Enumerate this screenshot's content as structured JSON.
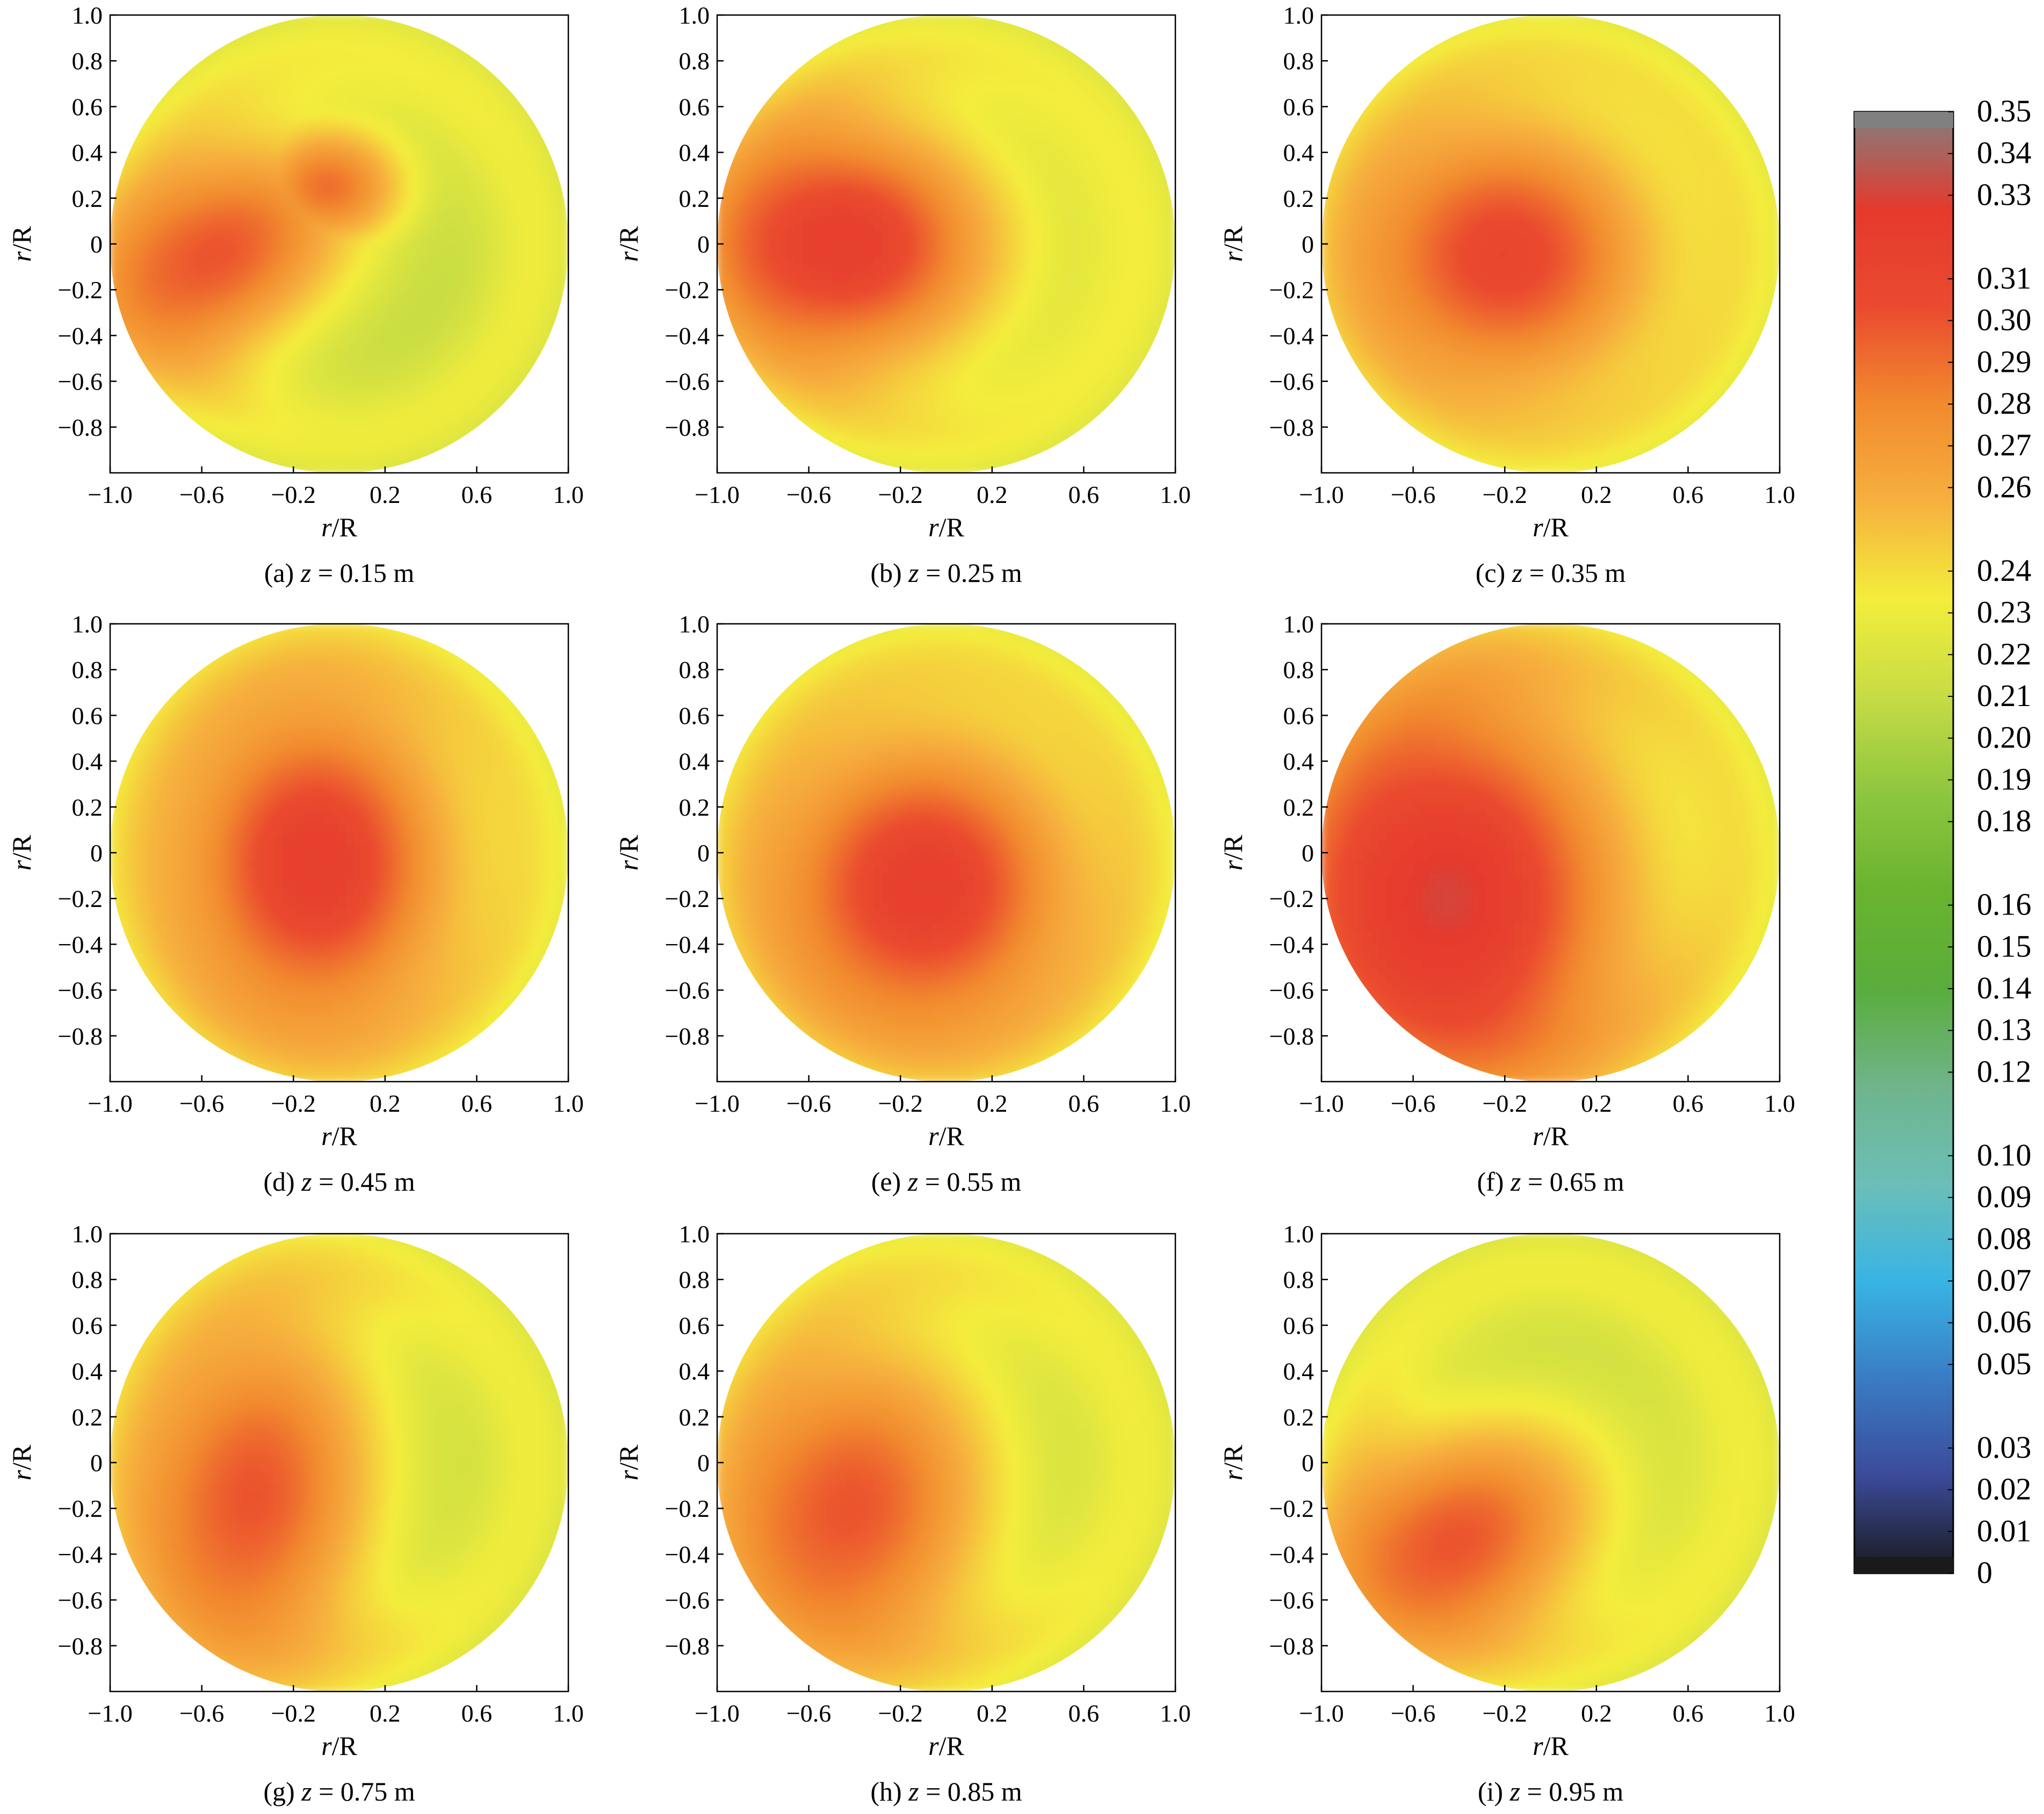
{
  "colors": {
    "colormap": [
      "#1a1a1a",
      "#3b4a9a",
      "#3a7cc4",
      "#39b4e4",
      "#6cbfb7",
      "#6fb48b",
      "#5aad3c",
      "#69b32f",
      "#8ec63f",
      "#c6dc44",
      "#f4ed3c",
      "#f6b03e",
      "#f28a2e",
      "#ea4a2f",
      "#e53a2d",
      "#808080"
    ],
    "axis": "#000000",
    "background": "#ffffff"
  },
  "chart_data": {
    "type": "heatmap",
    "panel_count": 9,
    "panel_layout": "3x3 grid",
    "colorbar_location": "right",
    "axis_tick_labels": [
      "−1.0",
      "−0.6",
      "−0.2",
      "0.2",
      "0.6",
      "1.0"
    ],
    "y_tick_labels": [
      "1.0",
      "0.8",
      "0.6",
      "0.4",
      "0.2",
      "0",
      "−0.2",
      "−0.4",
      "−0.6",
      "−0.8"
    ],
    "xlim": [
      -1.0,
      1.0
    ],
    "ylim": [
      -1.0,
      1.0
    ],
    "panels": [
      {
        "label_prefix": "(a) ",
        "var": "z",
        "eq": " = 0.15 m",
        "xlabel_v": "r",
        "xlabel_s": "/R",
        "ylabel_v": "r",
        "ylabel_s": "/R",
        "peak_value": 0.3,
        "peak_center": [
          -0.55,
          -0.05
        ],
        "spread": [
          0.5,
          0.32
        ],
        "tilt_deg": 30,
        "secondary": {
          "center": [
            -0.05,
            0.25
          ],
          "value": 0.29,
          "spread": [
            0.25,
            0.2
          ]
        }
      },
      {
        "label_prefix": "(b) ",
        "var": "z",
        "eq": " = 0.25 m",
        "xlabel_v": "r",
        "xlabel_s": "/R",
        "ylabel_v": "r",
        "ylabel_s": "/R",
        "peak_value": 0.32,
        "peak_center": [
          -0.45,
          0.0
        ],
        "spread": [
          0.5,
          0.4
        ],
        "tilt_deg": 0
      },
      {
        "label_prefix": "(c) ",
        "var": "z",
        "eq": " = 0.35 m",
        "xlabel_v": "r",
        "xlabel_s": "/R",
        "ylabel_v": "r",
        "ylabel_s": "/R",
        "peak_value": 0.31,
        "peak_center": [
          -0.2,
          -0.05
        ],
        "spread": [
          0.5,
          0.45
        ],
        "tilt_deg": 0
      },
      {
        "label_prefix": "(d) ",
        "var": "z",
        "eq": " = 0.45 m",
        "xlabel_v": "r",
        "xlabel_s": "/R",
        "ylabel_v": "r",
        "ylabel_s": "/R",
        "peak_value": 0.32,
        "peak_center": [
          -0.1,
          -0.05
        ],
        "spread": [
          0.45,
          0.55
        ],
        "tilt_deg": 0
      },
      {
        "label_prefix": "(e) ",
        "var": "z",
        "eq": " = 0.55 m",
        "xlabel_v": "r",
        "xlabel_s": "/R",
        "ylabel_v": "r",
        "ylabel_s": "/R",
        "peak_value": 0.32,
        "peak_center": [
          -0.1,
          -0.15
        ],
        "spread": [
          0.5,
          0.5
        ],
        "tilt_deg": 0
      },
      {
        "label_prefix": "(f) ",
        "var": "z",
        "eq": " = 0.65 m",
        "xlabel_v": "r",
        "xlabel_s": "/R",
        "ylabel_v": "r",
        "ylabel_s": "/R",
        "peak_value": 0.33,
        "peak_center": [
          -0.45,
          -0.2
        ],
        "spread": [
          0.6,
          0.7
        ],
        "tilt_deg": 0
      },
      {
        "label_prefix": "(g) ",
        "var": "z",
        "eq": " = 0.75 m",
        "xlabel_v": "r",
        "xlabel_s": "/R",
        "ylabel_v": "r",
        "ylabel_s": "/R",
        "peak_value": 0.3,
        "peak_center": [
          -0.38,
          -0.15
        ],
        "spread": [
          0.4,
          0.6
        ],
        "tilt_deg": -10
      },
      {
        "label_prefix": "(h) ",
        "var": "z",
        "eq": " = 0.85 m",
        "xlabel_v": "r",
        "xlabel_s": "/R",
        "ylabel_v": "r",
        "ylabel_s": "/R",
        "peak_value": 0.3,
        "peak_center": [
          -0.42,
          -0.2
        ],
        "spread": [
          0.45,
          0.55
        ],
        "tilt_deg": -20
      },
      {
        "label_prefix": "(i) ",
        "var": "z",
        "eq": " = 0.95 m",
        "xlabel_v": "r",
        "xlabel_s": "/R",
        "ylabel_v": "r",
        "ylabel_s": "/R",
        "peak_value": 0.3,
        "peak_center": [
          -0.42,
          -0.35
        ],
        "spread": [
          0.5,
          0.35
        ],
        "tilt_deg": 30
      }
    ],
    "colorbar": {
      "vmin": 0,
      "vmax": 0.35,
      "tick_labels": [
        "0.35",
        "0.34",
        "0.33",
        "0.31",
        "0.30",
        "0.29",
        "0.28",
        "0.27",
        "0.26",
        "0.24",
        "0.23",
        "0.22",
        "0.21",
        "0.20",
        "0.19",
        "0.18",
        "0.16",
        "0.15",
        "0.14",
        "0.13",
        "0.12",
        "0.10",
        "0.09",
        "0.08",
        "0.07",
        "0.06",
        "0.05",
        "0.03",
        "0.02",
        "0.01",
        "0"
      ],
      "tick_values": [
        0.35,
        0.34,
        0.33,
        0.31,
        0.3,
        0.29,
        0.28,
        0.27,
        0.26,
        0.24,
        0.23,
        0.22,
        0.21,
        0.2,
        0.19,
        0.18,
        0.16,
        0.15,
        0.14,
        0.13,
        0.12,
        0.1,
        0.09,
        0.08,
        0.07,
        0.06,
        0.05,
        0.03,
        0.02,
        0.01,
        0
      ]
    }
  }
}
